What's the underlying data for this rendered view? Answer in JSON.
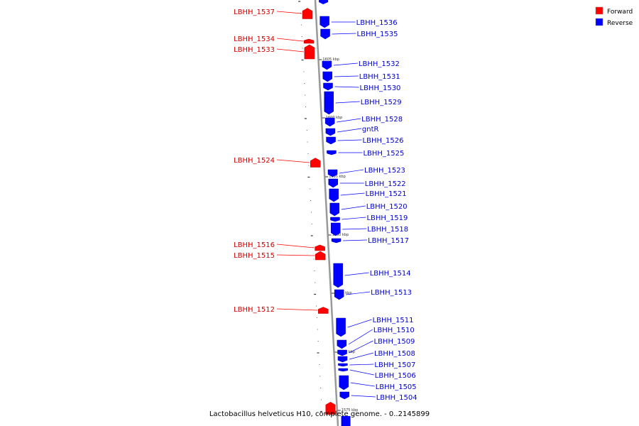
{
  "legend": {
    "items": [
      {
        "label": "Forward",
        "color": "#ff0000"
      },
      {
        "label": "Reverse",
        "color": "#0000ff"
      }
    ]
  },
  "caption": "Lactobacillus helveticus H10, complete genome. - 0..2145899",
  "colors": {
    "forward": "#ff0000",
    "reverse": "#0000ff",
    "forward_label": "#cc0000",
    "reverse_label": "#0000cc",
    "backbone": "#999999"
  },
  "scale_ticks": [
    "1605 kbp",
    "1600 kbp",
    "1595 kbp",
    "1590 kbp",
    "1585 kbp",
    "1580 kbp",
    "1575 kbp"
  ],
  "forward_genes": [
    "LBHH_1537",
    "LBHH_1534",
    "LBHH_1533",
    "LBHH_1524",
    "LBHH_1516",
    "LBHH_1515",
    "LBHH_1512"
  ],
  "reverse_genes": [
    "LBHH_1536",
    "LBHH_1535",
    "LBHH_1532",
    "LBHH_1531",
    "LBHH_1530",
    "LBHH_1529",
    "LBHH_1528",
    "gntR",
    "LBHH_1526",
    "LBHH_1525",
    "LBHH_1523",
    "LBHH_1522",
    "LBHH_1521",
    "LBHH_1520",
    "LBHH_1519",
    "LBHH_1518",
    "LBHH_1517",
    "LBHH_1514",
    "LBHH_1513",
    "LBHH_1511",
    "LBHH_1510",
    "LBHH_1509",
    "LBHH_1508",
    "LBHH_1507",
    "LBHH_1506",
    "LBHH_1505",
    "LBHH_1504"
  ]
}
